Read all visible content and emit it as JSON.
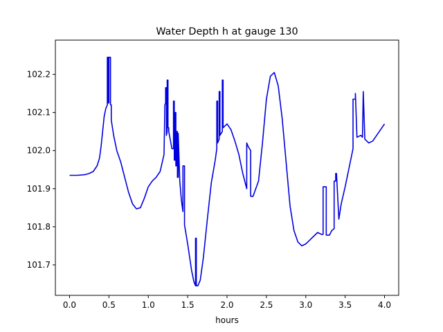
{
  "chart_data": {
    "type": "line",
    "title": "Water Depth h at gauge 130",
    "xlabel": "hours",
    "ylabel": "",
    "xlim": [
      -0.18,
      4.18
    ],
    "ylim": [
      101.62,
      102.29
    ],
    "x_ticks": [
      0.0,
      0.5,
      1.0,
      1.5,
      2.0,
      2.5,
      3.0,
      3.5,
      4.0
    ],
    "x_tick_labels": [
      "0.0",
      "0.5",
      "1.0",
      "1.5",
      "2.0",
      "2.5",
      "3.0",
      "3.5",
      "4.0"
    ],
    "y_ticks": [
      101.7,
      101.8,
      101.9,
      102.0,
      102.1,
      102.2
    ],
    "y_tick_labels": [
      "101.7",
      "101.8",
      "101.9",
      "102.0",
      "102.1",
      "102.2"
    ],
    "grid": false,
    "legend": "none",
    "series": [
      {
        "color": "#0000dd",
        "x": [
          0.0,
          0.1,
          0.2,
          0.25,
          0.3,
          0.35,
          0.38,
          0.4,
          0.42,
          0.44,
          0.46,
          0.48,
          0.48,
          0.49,
          0.49,
          0.5,
          0.5,
          0.52,
          0.52,
          0.53,
          0.53,
          0.56,
          0.6,
          0.65,
          0.7,
          0.75,
          0.8,
          0.85,
          0.9,
          0.95,
          1.0,
          1.05,
          1.1,
          1.15,
          1.2,
          1.21,
          1.21,
          1.22,
          1.22,
          1.23,
          1.23,
          1.24,
          1.24,
          1.25,
          1.25,
          1.26,
          1.26,
          1.3,
          1.32,
          1.32,
          1.33,
          1.33,
          1.34,
          1.34,
          1.35,
          1.35,
          1.36,
          1.36,
          1.37,
          1.37,
          1.38,
          1.38,
          1.4,
          1.42,
          1.44,
          1.44,
          1.46,
          1.46,
          1.5,
          1.55,
          1.58,
          1.6,
          1.6,
          1.61,
          1.61,
          1.63,
          1.66,
          1.7,
          1.75,
          1.8,
          1.85,
          1.87,
          1.87,
          1.88,
          1.88,
          1.9,
          1.9,
          1.91,
          1.91,
          1.94,
          1.94,
          1.95,
          1.95,
          2.0,
          2.05,
          2.1,
          2.15,
          2.2,
          2.25,
          2.25,
          2.27,
          2.27,
          2.3,
          2.3,
          2.33,
          2.4,
          2.45,
          2.5,
          2.55,
          2.6,
          2.65,
          2.7,
          2.75,
          2.8,
          2.85,
          2.9,
          2.95,
          3.0,
          3.05,
          3.1,
          3.15,
          3.2,
          3.22,
          3.22,
          3.26,
          3.26,
          3.3,
          3.33,
          3.36,
          3.36,
          3.38,
          3.38,
          3.39,
          3.42,
          3.45,
          3.5,
          3.55,
          3.6,
          3.6,
          3.63,
          3.63,
          3.65,
          3.7,
          3.72,
          3.72,
          3.73,
          3.73,
          3.75,
          3.8,
          3.85,
          3.9,
          3.95,
          4.0
        ],
        "y": [
          101.935,
          101.935,
          101.937,
          101.94,
          101.945,
          101.96,
          101.98,
          102.01,
          102.05,
          102.09,
          102.11,
          102.12,
          102.245,
          102.245,
          102.125,
          102.125,
          102.245,
          102.245,
          102.12,
          102.12,
          102.08,
          102.04,
          102.0,
          101.97,
          101.93,
          101.89,
          101.86,
          101.847,
          101.85,
          101.875,
          101.905,
          101.92,
          101.93,
          101.945,
          101.99,
          102.115,
          102.12,
          102.125,
          102.165,
          102.165,
          102.04,
          102.05,
          102.185,
          102.185,
          102.06,
          102.06,
          102.05,
          102.005,
          102.005,
          102.13,
          102.13,
          101.975,
          101.975,
          102.1,
          102.1,
          101.96,
          101.96,
          102.05,
          102.05,
          101.93,
          101.93,
          102.045,
          101.92,
          101.87,
          101.84,
          101.96,
          101.96,
          101.805,
          101.755,
          101.685,
          101.655,
          101.645,
          101.77,
          101.77,
          101.645,
          101.645,
          101.66,
          101.72,
          101.82,
          101.915,
          101.975,
          102.005,
          102.13,
          102.13,
          102.02,
          102.03,
          102.155,
          102.155,
          102.04,
          102.05,
          102.185,
          102.185,
          102.06,
          102.07,
          102.055,
          102.025,
          101.99,
          101.94,
          101.9,
          102.02,
          102.01,
          102.01,
          102.0,
          101.88,
          101.88,
          101.92,
          102.02,
          102.135,
          102.195,
          102.205,
          102.17,
          102.085,
          101.97,
          101.855,
          101.79,
          101.76,
          101.75,
          101.755,
          101.765,
          101.775,
          101.785,
          101.78,
          101.78,
          101.905,
          101.905,
          101.778,
          101.778,
          101.79,
          101.795,
          101.92,
          101.92,
          101.94,
          101.94,
          101.82,
          101.86,
          101.905,
          101.955,
          102.005,
          102.135,
          102.135,
          102.15,
          102.035,
          102.04,
          102.035,
          102.035,
          102.155,
          102.155,
          102.03,
          102.02,
          102.025,
          102.04,
          102.055,
          102.07
        ]
      }
    ]
  }
}
